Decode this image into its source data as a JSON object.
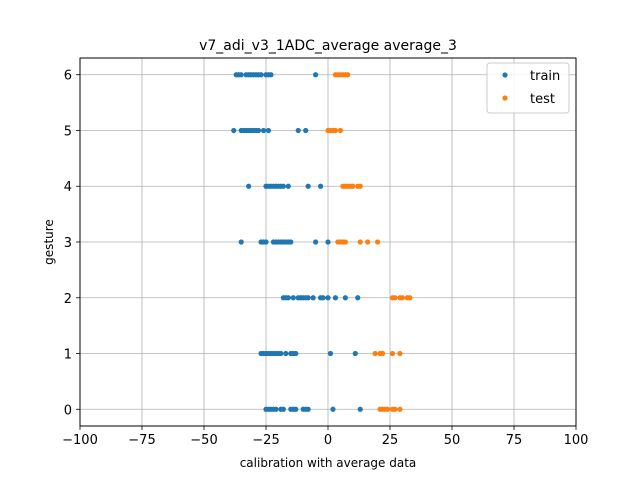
{
  "chart_data": {
    "type": "scatter",
    "title": "v7_adi_v3_1ADC_average average_3",
    "xlabel": "calibration with average data",
    "ylabel": "gesture",
    "xlim": [
      -100,
      100
    ],
    "ylim": [
      -0.3,
      6.3
    ],
    "xticks": [
      -100,
      -75,
      -50,
      -25,
      0,
      25,
      50,
      75,
      100
    ],
    "xtick_labels": [
      "−100",
      "−75",
      "−50",
      "−25",
      "0",
      "25",
      "50",
      "75",
      "100"
    ],
    "yticks": [
      0,
      1,
      2,
      3,
      4,
      5,
      6
    ],
    "ytick_labels": [
      "0",
      "1",
      "2",
      "3",
      "4",
      "5",
      "6"
    ],
    "grid": true,
    "legend_position": "top-right",
    "series": [
      {
        "name": "train",
        "color": "#1f77b4",
        "points": [
          [
            -37,
            6
          ],
          [
            -36,
            6
          ],
          [
            -35,
            6
          ],
          [
            -33,
            6
          ],
          [
            -32,
            6
          ],
          [
            -31,
            6
          ],
          [
            -30,
            6
          ],
          [
            -29,
            6
          ],
          [
            -28,
            6
          ],
          [
            -27,
            6
          ],
          [
            -25,
            6
          ],
          [
            -24,
            6
          ],
          [
            -23,
            6
          ],
          [
            -5,
            6
          ],
          [
            -38,
            5
          ],
          [
            -35,
            5
          ],
          [
            -34,
            5
          ],
          [
            -33,
            5
          ],
          [
            -32,
            5
          ],
          [
            -31,
            5
          ],
          [
            -30,
            5
          ],
          [
            -29,
            5
          ],
          [
            -28,
            5
          ],
          [
            -26,
            5
          ],
          [
            -24,
            5
          ],
          [
            -12,
            5
          ],
          [
            -9,
            5
          ],
          [
            -32,
            4
          ],
          [
            -25,
            4
          ],
          [
            -24,
            4
          ],
          [
            -23,
            4
          ],
          [
            -22,
            4
          ],
          [
            -21,
            4
          ],
          [
            -20,
            4
          ],
          [
            -19,
            4
          ],
          [
            -18,
            4
          ],
          [
            -16,
            4
          ],
          [
            -8,
            4
          ],
          [
            -3,
            4
          ],
          [
            -35,
            3
          ],
          [
            -27,
            3
          ],
          [
            -26,
            3
          ],
          [
            -25,
            3
          ],
          [
            -22,
            3
          ],
          [
            -21,
            3
          ],
          [
            -20,
            3
          ],
          [
            -19,
            3
          ],
          [
            -18,
            3
          ],
          [
            -17,
            3
          ],
          [
            -16,
            3
          ],
          [
            -15,
            3
          ],
          [
            -5,
            3
          ],
          [
            0,
            3
          ],
          [
            -18,
            2
          ],
          [
            -17,
            2
          ],
          [
            -16,
            2
          ],
          [
            -14,
            2
          ],
          [
            -12,
            2
          ],
          [
            -11,
            2
          ],
          [
            -10,
            2
          ],
          [
            -9,
            2
          ],
          [
            -8,
            2
          ],
          [
            -6,
            2
          ],
          [
            -3,
            2
          ],
          [
            -2,
            2
          ],
          [
            0,
            2
          ],
          [
            3,
            2
          ],
          [
            7,
            2
          ],
          [
            12,
            2
          ],
          [
            -27,
            1
          ],
          [
            -26,
            1
          ],
          [
            -25,
            1
          ],
          [
            -24,
            1
          ],
          [
            -23,
            1
          ],
          [
            -22,
            1
          ],
          [
            -21,
            1
          ],
          [
            -20,
            1
          ],
          [
            -19,
            1
          ],
          [
            -17,
            1
          ],
          [
            -15,
            1
          ],
          [
            -14,
            1
          ],
          [
            -13,
            1
          ],
          [
            1,
            1
          ],
          [
            11,
            1
          ],
          [
            -25,
            0
          ],
          [
            -24,
            0
          ],
          [
            -23,
            0
          ],
          [
            -22,
            0
          ],
          [
            -21,
            0
          ],
          [
            -19,
            0
          ],
          [
            -18,
            0
          ],
          [
            -15,
            0
          ],
          [
            -14,
            0
          ],
          [
            -13,
            0
          ],
          [
            -10,
            0
          ],
          [
            -9,
            0
          ],
          [
            -8,
            0
          ],
          [
            2,
            0
          ],
          [
            13,
            0
          ]
        ]
      },
      {
        "name": "test",
        "color": "#ff7f0e",
        "points": [
          [
            3,
            6
          ],
          [
            4,
            6
          ],
          [
            5,
            6
          ],
          [
            6,
            6
          ],
          [
            7,
            6
          ],
          [
            8,
            6
          ],
          [
            0,
            5
          ],
          [
            1,
            5
          ],
          [
            2,
            5
          ],
          [
            3,
            5
          ],
          [
            5,
            5
          ],
          [
            6,
            4
          ],
          [
            7,
            4
          ],
          [
            8,
            4
          ],
          [
            9,
            4
          ],
          [
            10,
            4
          ],
          [
            12,
            4
          ],
          [
            13,
            4
          ],
          [
            4,
            3
          ],
          [
            5,
            3
          ],
          [
            6,
            3
          ],
          [
            7,
            3
          ],
          [
            13,
            3
          ],
          [
            16,
            3
          ],
          [
            20,
            3
          ],
          [
            26,
            2
          ],
          [
            27,
            2
          ],
          [
            29,
            2
          ],
          [
            30,
            2
          ],
          [
            32,
            2
          ],
          [
            33,
            2
          ],
          [
            19,
            1
          ],
          [
            21,
            1
          ],
          [
            22,
            1
          ],
          [
            26,
            1
          ],
          [
            29,
            1
          ],
          [
            21,
            0
          ],
          [
            22,
            0
          ],
          [
            23,
            0
          ],
          [
            24,
            0
          ],
          [
            26,
            0
          ],
          [
            27,
            0
          ],
          [
            29,
            0
          ]
        ]
      }
    ]
  }
}
